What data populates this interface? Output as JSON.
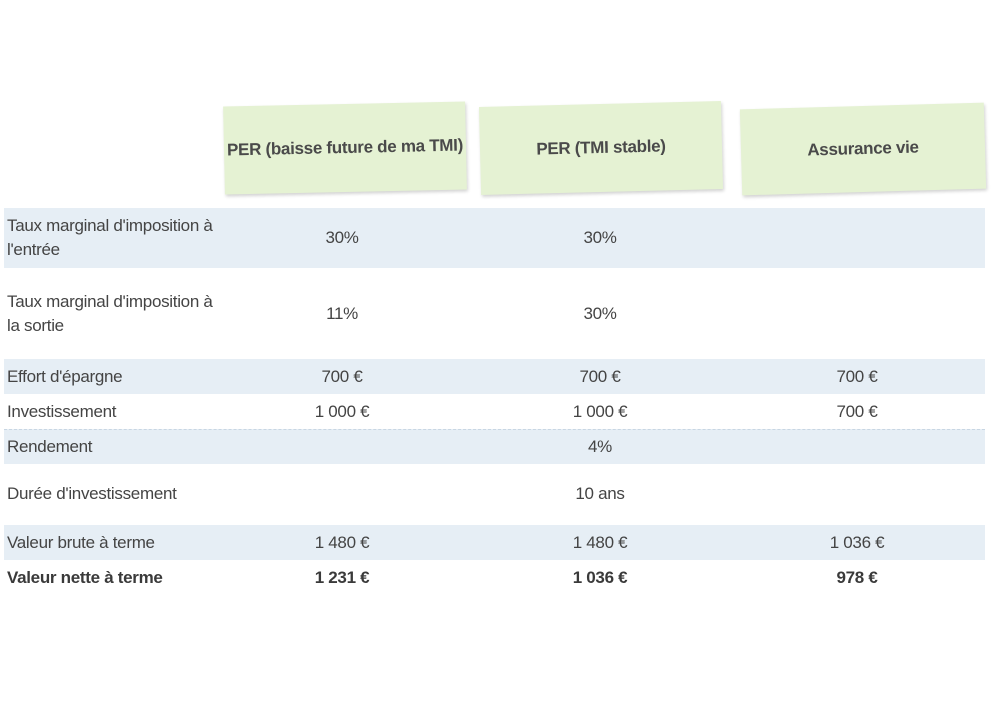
{
  "headers": {
    "col1": "PER (baisse future de ma TMI)",
    "col2": "PER (TMI stable)",
    "col3": "Assurance vie"
  },
  "rows": [
    {
      "label": "Taux marginal d'imposition à l'entrée",
      "c1": "30%",
      "c2": "30%",
      "c3": ""
    },
    {
      "label": "Taux marginal d'imposition à la sortie",
      "c1": "11%",
      "c2": "30%",
      "c3": ""
    },
    {
      "label": "Effort d'épargne",
      "c1": "700 €",
      "c2": "700 €",
      "c3": "700 €"
    },
    {
      "label": "Investissement",
      "c1": "1 000 €",
      "c2": "1 000 €",
      "c3": "700 €"
    },
    {
      "label": "Rendement",
      "merged": "4%"
    },
    {
      "label": "Durée d'investissement",
      "merged": "10 ans"
    },
    {
      "label": "Valeur brute à terme",
      "c1": "1 480 €",
      "c2": "1 480 €",
      "c3": "1 036 €"
    },
    {
      "label": "Valeur nette à terme",
      "c1": "1 231 €",
      "c2": "1 036 €",
      "c3": "978 €"
    }
  ],
  "colors": {
    "header_bg": "#e5f2d3",
    "row_shade": "#e6eef5"
  }
}
